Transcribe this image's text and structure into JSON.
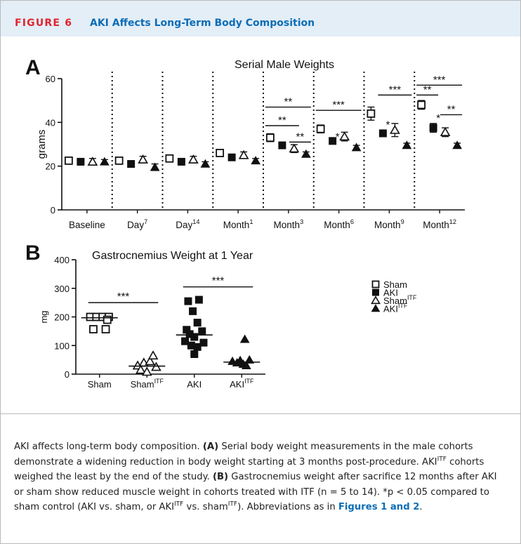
{
  "figure": {
    "label": "FIGURE 6",
    "title": "AKI Affects Long-Term Body Composition"
  },
  "chart_data": [
    {
      "type": "scatter",
      "panel": "A",
      "title": "Serial Male Weights",
      "ylabel": "grams",
      "ylim": [
        0,
        60
      ],
      "yticks": [
        0,
        20,
        40,
        60
      ],
      "grid": false,
      "categories": [
        "Baseline",
        "Day7",
        "Day14",
        "Month1",
        "Month3",
        "Month6",
        "Month9",
        "Month12"
      ],
      "category_labels": [
        {
          "base": "Baseline",
          "sup": ""
        },
        {
          "base": "Day",
          "sup": "7"
        },
        {
          "base": "Day",
          "sup": "14"
        },
        {
          "base": "Month",
          "sup": "1"
        },
        {
          "base": "Month",
          "sup": "3"
        },
        {
          "base": "Month",
          "sup": "6"
        },
        {
          "base": "Month",
          "sup": "9"
        },
        {
          "base": "Month",
          "sup": "12"
        }
      ],
      "series": [
        {
          "key": "sham",
          "values": [
            22.5,
            22.5,
            23.5,
            26,
            33,
            37,
            44,
            48
          ],
          "err": [
            1.2,
            1.5,
            1.5,
            1.5,
            1.8,
            1.8,
            3,
            2
          ]
        },
        {
          "key": "aki",
          "values": [
            22,
            21,
            22,
            24,
            29.5,
            31.5,
            35,
            37.5
          ],
          "err": [
            1,
            1,
            1,
            1,
            1,
            1,
            1.5,
            2
          ]
        },
        {
          "key": "sham_itf",
          "values": [
            22,
            23,
            23,
            25,
            28,
            33.5,
            36.5,
            35.5
          ],
          "err": [
            1.5,
            1.5,
            1.5,
            1.5,
            1.8,
            2,
            3,
            2
          ]
        },
        {
          "key": "aki_itf",
          "values": [
            22,
            19.5,
            21,
            22.5,
            25.5,
            28.5,
            29.5,
            29.5
          ],
          "err": [
            1,
            1.5,
            1,
            1,
            1,
            1,
            1,
            1
          ]
        }
      ],
      "point_stars": [
        {
          "category": "Month6",
          "y": 34.5,
          "label": "*"
        },
        {
          "category": "Month9",
          "y": 40,
          "label": "*"
        },
        {
          "category": "Month12",
          "y": 43,
          "label": "*"
        }
      ],
      "brackets": [
        {
          "category": "Month3",
          "from": "sham",
          "to": "aki_itf",
          "y": 47,
          "label": "**"
        },
        {
          "category": "Month3",
          "from": "sham",
          "to": "sham_itf",
          "y": 38.5,
          "label": "**"
        },
        {
          "category": "Month3",
          "from": "sham_itf",
          "to": "aki_itf",
          "y": 31,
          "label": "**"
        },
        {
          "category": "Month6",
          "from": "sham",
          "to": "aki_itf",
          "y": 45.5,
          "label": "***"
        },
        {
          "category": "Month9",
          "from": "aki",
          "to": "aki_itf",
          "y": 52.5,
          "label": "***"
        },
        {
          "category": "Month12",
          "from": "sham",
          "to": "aki_itf",
          "y": 57,
          "label": "***"
        },
        {
          "category": "Month12",
          "from": "sham",
          "to": "aki",
          "y": 52.5,
          "label": "**"
        },
        {
          "category": "Month12",
          "from": "sham_itf",
          "to": "aki_itf",
          "y": 43.5,
          "label": "**"
        }
      ]
    },
    {
      "type": "scatter",
      "panel": "B",
      "title": "Gastrocnemius Weight at 1 Year",
      "ylabel": "mg",
      "ylim": [
        0,
        400
      ],
      "yticks": [
        0,
        100,
        200,
        300,
        400
      ],
      "grid": false,
      "categories": [
        "Sham",
        "ShamITF",
        "AKI",
        "AKIITF"
      ],
      "category_labels": [
        {
          "base": "Sham",
          "sup": ""
        },
        {
          "base": "Sham",
          "sup": "ITF"
        },
        {
          "base": "AKI",
          "sup": ""
        },
        {
          "base": "AKI",
          "sup": "ITF"
        }
      ],
      "groups": [
        {
          "key": "sham",
          "median": 197,
          "points": [
            [
              -0.3,
              200
            ],
            [
              -0.1,
              200
            ],
            [
              0.1,
              200
            ],
            [
              0.3,
              200
            ],
            [
              -0.2,
              157
            ],
            [
              0.2,
              157
            ],
            [
              0.25,
              190
            ]
          ]
        },
        {
          "key": "sham_itf",
          "median": 28,
          "points": [
            [
              -0.3,
              30
            ],
            [
              -0.1,
              40
            ],
            [
              0.1,
              45
            ],
            [
              0.2,
              65
            ],
            [
              -0.2,
              15
            ],
            [
              0.0,
              8
            ],
            [
              0.3,
              25
            ]
          ]
        },
        {
          "key": "aki",
          "median": 137,
          "points": [
            [
              -0.2,
              255
            ],
            [
              0.15,
              260
            ],
            [
              -0.05,
              220
            ],
            [
              0.1,
              180
            ],
            [
              -0.25,
              155
            ],
            [
              0.25,
              150
            ],
            [
              -0.15,
              140
            ],
            [
              0.0,
              130
            ],
            [
              -0.3,
              115
            ],
            [
              0.3,
              110
            ],
            [
              -0.1,
              100
            ],
            [
              0.1,
              95
            ],
            [
              0.0,
              70
            ]
          ]
        },
        {
          "key": "aki_itf",
          "median": 42,
          "points": [
            [
              -0.3,
              45
            ],
            [
              -0.15,
              40
            ],
            [
              0.05,
              35
            ],
            [
              0.25,
              50
            ],
            [
              -0.05,
              48
            ],
            [
              0.15,
              30
            ],
            [
              0.1,
              122
            ]
          ]
        }
      ],
      "brackets": [
        {
          "from": "Sham",
          "to": "ShamITF",
          "y": 250,
          "label": "***"
        },
        {
          "from": "AKI",
          "to": "AKIITF",
          "y": 305,
          "label": "***"
        }
      ],
      "legend_position": "right",
      "legend": [
        {
          "key": "sham",
          "base": "Sham",
          "sup": ""
        },
        {
          "key": "aki",
          "base": "AKI",
          "sup": ""
        },
        {
          "key": "sham_itf",
          "base": "Sham",
          "sup": "ITF"
        },
        {
          "key": "aki_itf",
          "base": "AKI",
          "sup": "ITF"
        }
      ]
    }
  ],
  "caption": {
    "intro": "AKI affects long-term body composition.",
    "a_label": "(A)",
    "a_text_1": "Serial body weight measurements in the male cohorts demonstrate a widening reduction in body weight starting at 3 months post-procedure. AKI",
    "a_sup": "ITF",
    "a_text_2": "cohorts weighed the least by the end of the study.",
    "b_label": "(B)",
    "b_text_1": "Gastrocnemius weight after sacrifice 12 months after AKI or sham show reduced muscle weight in cohorts treated with ITF (n = 5 to 14). *p < 0.05 compared to sham control (AKI vs. sham, or AKI",
    "b_sup_1": "ITF",
    "b_text_2": "vs. sham",
    "b_sup_2": "ITF",
    "b_text_3": "). Abbreviations as in",
    "ref": "Figures 1 and 2",
    "end": "."
  }
}
